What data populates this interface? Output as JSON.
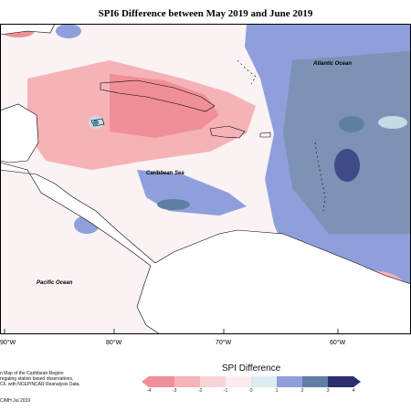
{
  "title": "SPI6 Difference between May 2019 and June 2019",
  "map_labels": {
    "atlantic": "Atlantic Ocean",
    "caribbean": "Caribbean Sea",
    "pacific": "Pacific Ocean"
  },
  "longitude_ticks": [
    "90°W",
    "80°W",
    "70°W",
    "60°W"
  ],
  "credit_lines": [
    "n Map of the Caribbean Region",
    "regating station based observations,",
    "CF, with NCEP/NCAR Reanalysis Data."
  ],
  "copyright": "CIMH Jul 2019",
  "legend": {
    "title": "SPI Difference",
    "labels": [
      "-4",
      "-3",
      "-2",
      "-1",
      "0",
      "1",
      "2",
      "3",
      "4"
    ],
    "colors": [
      "#f08f98",
      "#f5b3b8",
      "#f9d4d6",
      "#fcecee",
      "#dcecf0",
      "#c4dce6",
      "#8f9fdc",
      "#5f7fa2",
      "#2c2f6b"
    ]
  }
}
